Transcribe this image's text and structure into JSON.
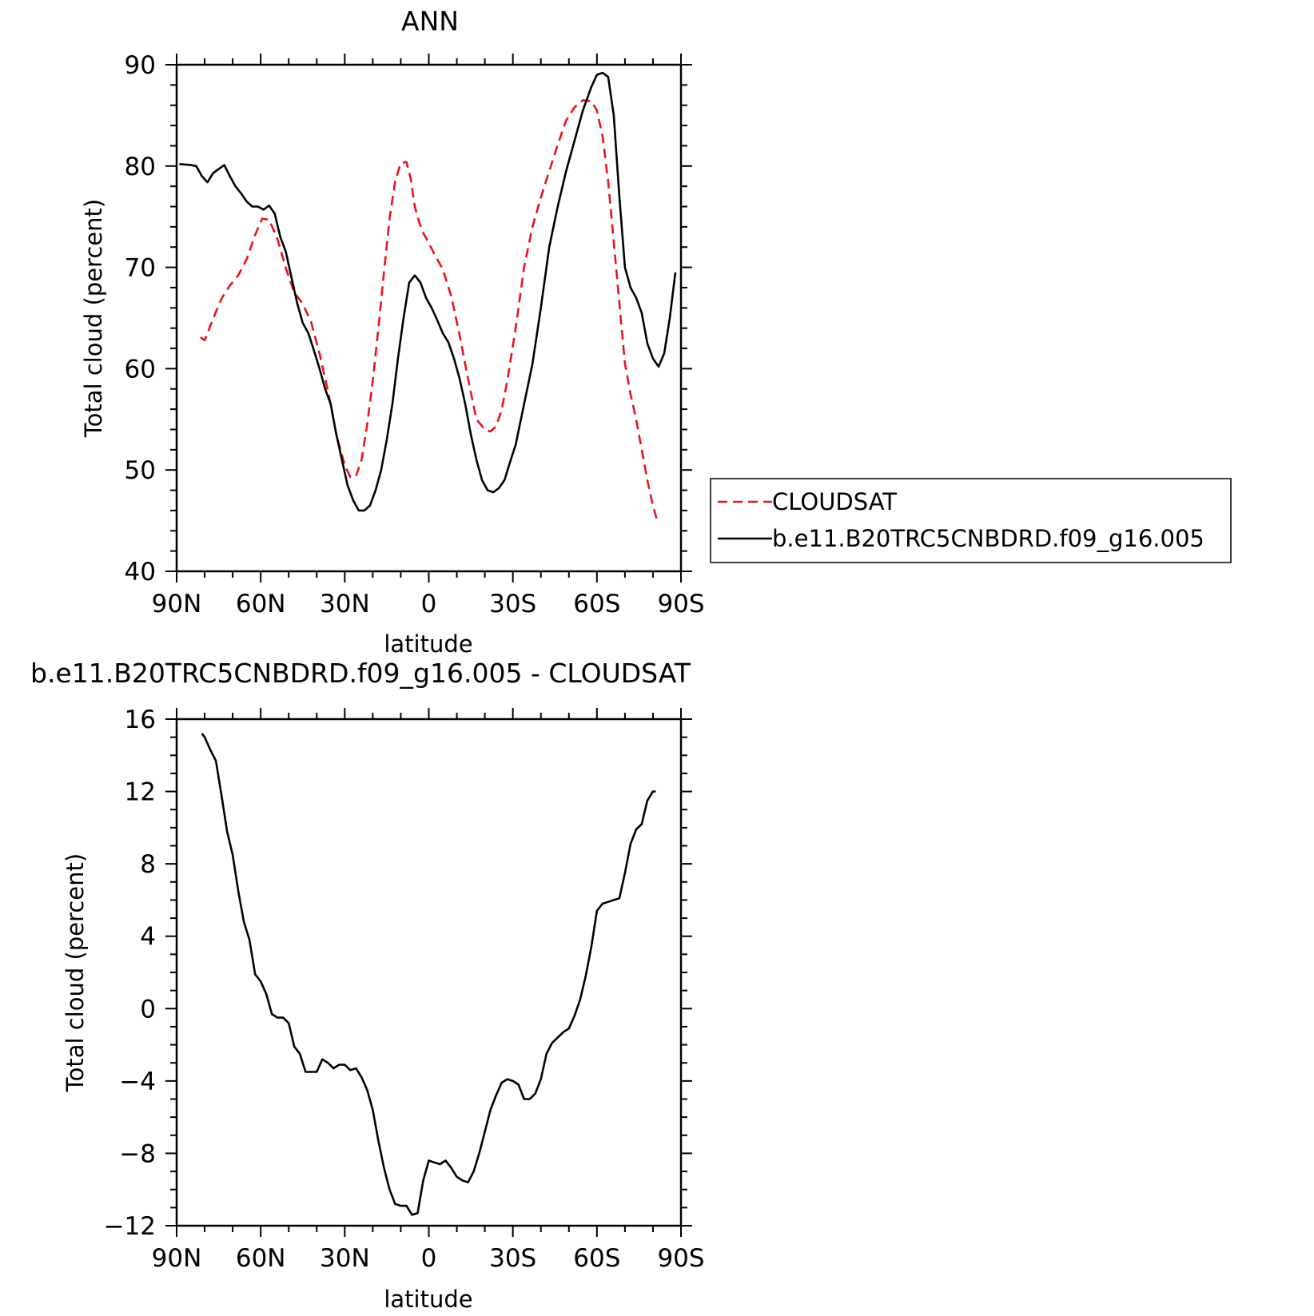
{
  "chart_data": [
    {
      "type": "line",
      "title": "ANN",
      "xlabel": "latitude",
      "ylabel": "Total cloud (percent)",
      "xlim": [
        90,
        -90
      ],
      "ylim": [
        40,
        90
      ],
      "x_ticks": [
        90,
        60,
        30,
        0,
        -30,
        -60,
        -90
      ],
      "x_tick_labels": [
        "90N",
        "60N",
        "30N",
        "0",
        "30S",
        "60S",
        "90S"
      ],
      "y_ticks": [
        40,
        50,
        60,
        70,
        80,
        90
      ],
      "y_tick_labels": [
        "40",
        "50",
        "60",
        "70",
        "80",
        "90"
      ],
      "grid": false,
      "legend_position": "right",
      "series": [
        {
          "name": "CLOUDSAT",
          "color": "#e8141c",
          "dash": "dashed",
          "x": [
            81.5,
            80,
            78,
            76,
            74,
            71,
            68,
            65,
            62,
            59.5,
            57,
            54,
            51,
            48,
            45,
            42,
            39,
            36,
            33,
            30,
            28,
            26,
            24,
            22,
            20,
            18,
            16,
            14,
            12,
            10,
            8,
            6.5,
            5,
            3.5,
            2,
            0,
            -2,
            -5,
            -8,
            -11,
            -14,
            -17,
            -20,
            -22,
            -24,
            -26,
            -28,
            -31,
            -34,
            -37,
            -40,
            -43,
            -46,
            -49,
            -52,
            -55,
            -58,
            -60,
            -62,
            -64,
            -66,
            -68,
            -70,
            -72,
            -74,
            -76,
            -78,
            -80,
            -81.5
          ],
          "y": [
            63.1,
            62.8,
            64.2,
            65.6,
            66.9,
            68.2,
            69.2,
            70.8,
            73.2,
            74.8,
            74.7,
            72.8,
            69.9,
            67.5,
            66.4,
            64.6,
            61.5,
            57.8,
            53.5,
            50.5,
            49.3,
            49.4,
            51.0,
            54.5,
            58.8,
            64.0,
            69.5,
            74.8,
            78.5,
            80.3,
            80.4,
            78.8,
            76.0,
            74.5,
            73.4,
            72.4,
            71.3,
            69.8,
            67.2,
            63.3,
            59.0,
            55.0,
            54.0,
            53.8,
            54.3,
            55.9,
            58.8,
            64.0,
            70.0,
            74.0,
            76.9,
            79.5,
            82.1,
            84.5,
            85.8,
            86.5,
            86.4,
            85.5,
            83.0,
            78.5,
            72.5,
            66.5,
            60.5,
            57.5,
            55.0,
            52.0,
            49.0,
            46.5,
            45.0
          ]
        },
        {
          "name": "b.e11.B20TRC5CNBDRD.f09_g16.005",
          "color": "#000000",
          "dash": "solid",
          "x": [
            89,
            85,
            83,
            81,
            79,
            77,
            75,
            73,
            71,
            69,
            67,
            65,
            63,
            61,
            59,
            57,
            55,
            53,
            51,
            49,
            47,
            45,
            43,
            41,
            39,
            37,
            35,
            33,
            31,
            29,
            27,
            25,
            23,
            21,
            19,
            17,
            15,
            13,
            11,
            9,
            7,
            5,
            3,
            1,
            -1,
            -3,
            -5,
            -7,
            -9,
            -11,
            -13,
            -15,
            -17,
            -19,
            -21,
            -23,
            -25,
            -27,
            -29,
            -31,
            -34,
            -37,
            -40,
            -43,
            -46,
            -49,
            -52,
            -55,
            -58,
            -60,
            -62,
            -64,
            -66,
            -68,
            -70,
            -72,
            -74,
            -76,
            -78,
            -80,
            -82,
            -84,
            -86,
            -88
          ],
          "y": [
            80.2,
            80.1,
            80.0,
            79.0,
            78.4,
            79.3,
            79.7,
            80.1,
            79.0,
            78.0,
            77.3,
            76.5,
            76.0,
            76.0,
            75.7,
            76.1,
            75.3,
            73.0,
            71.5,
            69.0,
            66.5,
            64.5,
            63.5,
            61.8,
            60.0,
            58.0,
            56.5,
            53.5,
            51.0,
            48.5,
            47.0,
            46.0,
            46.0,
            46.5,
            48.0,
            50.0,
            53.0,
            56.5,
            61.0,
            65.0,
            68.5,
            69.2,
            68.5,
            67.0,
            66.0,
            64.8,
            63.5,
            62.6,
            61.0,
            59.0,
            56.5,
            53.5,
            51.0,
            49.0,
            48.0,
            47.8,
            48.2,
            49.0,
            50.8,
            52.5,
            56.5,
            60.5,
            66.0,
            72.0,
            76.0,
            79.5,
            82.5,
            85.5,
            87.8,
            89.0,
            89.2,
            88.8,
            85.0,
            77.0,
            70.0,
            68.0,
            67.0,
            65.5,
            62.5,
            61.0,
            60.2,
            61.5,
            65.0,
            69.5
          ]
        }
      ]
    },
    {
      "type": "line",
      "title": "b.e11.B20TRC5CNBDRD.f09_g16.005 - CLOUDSAT",
      "xlabel": "latitude",
      "ylabel": "Total cloud (percent)",
      "xlim": [
        90,
        -90
      ],
      "ylim": [
        -12,
        16
      ],
      "x_ticks": [
        90,
        60,
        30,
        0,
        -30,
        -60,
        -90
      ],
      "x_tick_labels": [
        "90N",
        "60N",
        "30N",
        "0",
        "30S",
        "60S",
        "90S"
      ],
      "y_ticks": [
        -12,
        -8,
        -4,
        0,
        4,
        8,
        12,
        16
      ],
      "y_tick_labels": [
        "−12",
        "−8",
        "−4",
        "0",
        "4",
        "8",
        "12",
        "16"
      ],
      "grid": false,
      "series": [
        {
          "color": "#000000",
          "dash": "solid",
          "x": [
            81,
            80,
            78,
            76,
            74,
            72,
            70,
            68,
            66,
            64,
            62,
            60,
            58,
            56,
            54,
            52,
            50,
            48,
            46,
            44,
            42,
            40,
            38,
            36,
            34,
            32,
            30,
            28,
            26,
            24,
            22,
            20,
            18,
            16,
            14,
            12,
            10,
            8,
            6,
            4,
            2,
            0,
            -2,
            -4,
            -6,
            -8,
            -10,
            -12,
            -14,
            -16,
            -18,
            -20,
            -22,
            -24,
            -26,
            -28,
            -30,
            -32,
            -34,
            -36,
            -38,
            -40,
            -42,
            -44,
            -46,
            -48,
            -50,
            -52,
            -54,
            -56,
            -58,
            -60,
            -62,
            -64,
            -66,
            -68,
            -70,
            -72,
            -74,
            -76,
            -78,
            -80,
            -81
          ],
          "y": [
            15.2,
            15.0,
            14.3,
            13.7,
            11.8,
            9.8,
            8.5,
            6.5,
            4.8,
            3.8,
            1.9,
            1.5,
            0.8,
            -0.3,
            -0.5,
            -0.5,
            -0.8,
            -2.1,
            -2.5,
            -3.5,
            -3.5,
            -3.5,
            -2.8,
            -3.0,
            -3.3,
            -3.1,
            -3.1,
            -3.4,
            -3.3,
            -3.8,
            -4.5,
            -5.6,
            -7.3,
            -8.8,
            -10.0,
            -10.8,
            -10.9,
            -10.9,
            -11.4,
            -11.3,
            -9.5,
            -8.4,
            -8.5,
            -8.6,
            -8.4,
            -8.8,
            -9.3,
            -9.5,
            -9.6,
            -9.0,
            -8.0,
            -6.8,
            -5.6,
            -4.8,
            -4.1,
            -3.9,
            -4.0,
            -4.2,
            -5.0,
            -5.0,
            -4.7,
            -3.9,
            -2.5,
            -1.9,
            -1.6,
            -1.3,
            -1.1,
            -0.4,
            0.5,
            1.8,
            3.4,
            5.4,
            5.8,
            5.9,
            6.0,
            6.1,
            7.5,
            9.1,
            9.9,
            10.2,
            11.5,
            12.0,
            12.0
          ]
        }
      ]
    }
  ]
}
